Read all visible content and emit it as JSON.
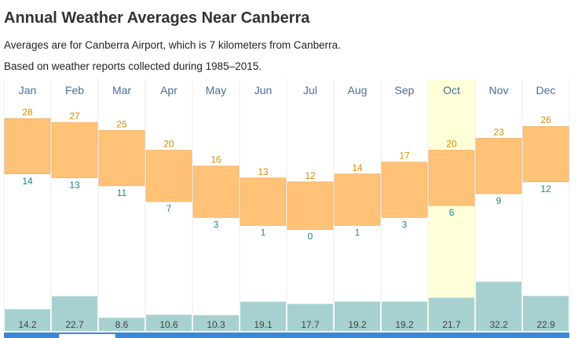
{
  "title": "Annual Weather Averages Near Canberra",
  "subtitle_1": "Averages are for Canberra Airport, which is 7 kilometers from Canberra.",
  "subtitle_2": "Based on weather reports collected during 1985–2015.",
  "colors": {
    "temp_band": "#ffc277",
    "temp_border": "#e6a85c",
    "high_label": "#d98c00",
    "low_label": "#1a8a8a",
    "precip_bar": "#a7d1d0",
    "month_label": "#4a6b9c",
    "highlight": "#ffffd8",
    "bottom_bar": "#3b87d6"
  },
  "chart_data": {
    "type": "bar",
    "categories": [
      "Jan",
      "Feb",
      "Mar",
      "Apr",
      "May",
      "Jun",
      "Jul",
      "Aug",
      "Sep",
      "Oct",
      "Nov",
      "Dec"
    ],
    "highlighted_category": "Oct",
    "series": [
      {
        "values": [
          28,
          27,
          25,
          20,
          16,
          13,
          12,
          14,
          17,
          20,
          23,
          26
        ]
      },
      {
        "values": [
          14,
          13,
          11,
          7,
          3,
          1,
          0,
          1,
          3,
          6,
          9,
          12
        ]
      },
      {
        "values": [
          14.2,
          22.7,
          8.6,
          10.6,
          10.3,
          19.1,
          17.7,
          19.2,
          19.2,
          21.7,
          32.2,
          22.9
        ]
      }
    ]
  }
}
